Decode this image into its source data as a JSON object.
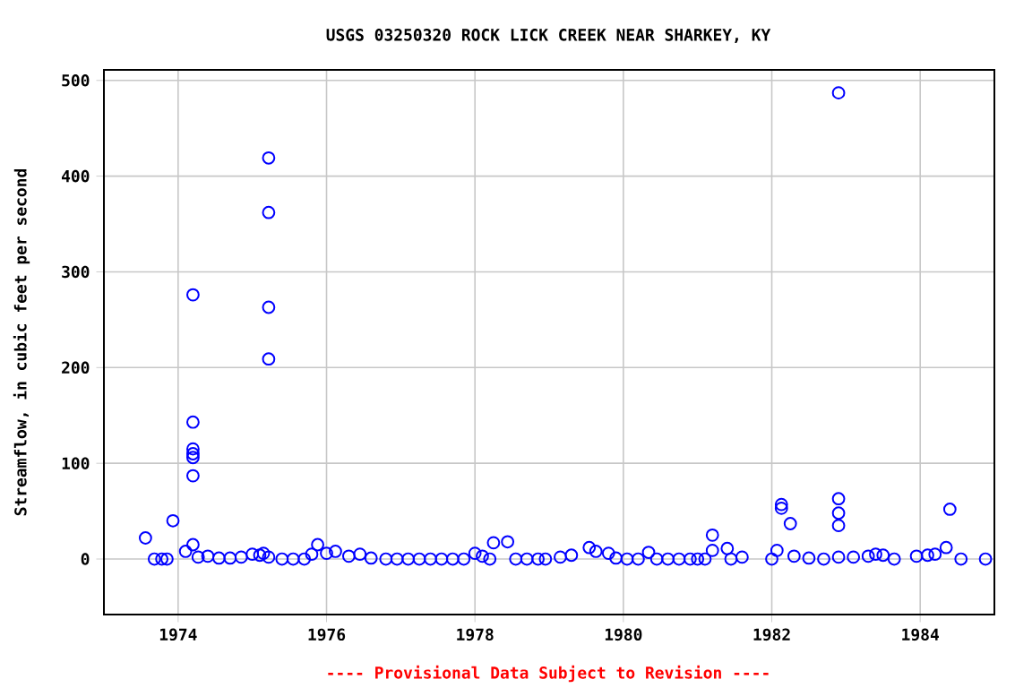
{
  "chart_data": {
    "type": "scatter",
    "title": "USGS 03250320 ROCK LICK CREEK NEAR SHARKEY, KY",
    "ylabel": "Streamflow, in cubic feet per second",
    "annotations": [
      "---- Provisional Data Subject to Revision ----"
    ],
    "x": [
      1973.56,
      1973.68,
      1973.78,
      1973.85,
      1973.93,
      1974.1,
      1974.2,
      1974.2,
      1974.2,
      1974.2,
      1974.2,
      1974.2,
      1974.2,
      1974.27,
      1974.4,
      1974.55,
      1974.7,
      1974.85,
      1975.0,
      1975.1,
      1975.15,
      1975.22,
      1975.22,
      1975.22,
      1975.22,
      1975.22,
      1975.4,
      1975.55,
      1975.7,
      1975.8,
      1975.88,
      1976.0,
      1976.12,
      1976.3,
      1976.45,
      1976.6,
      1976.8,
      1976.95,
      1977.1,
      1977.25,
      1977.4,
      1977.55,
      1977.7,
      1977.85,
      1978.0,
      1978.1,
      1978.2,
      1978.25,
      1978.44,
      1978.55,
      1978.7,
      1978.85,
      1978.95,
      1979.15,
      1979.3,
      1979.54,
      1979.63,
      1979.8,
      1979.9,
      1980.05,
      1980.2,
      1980.34,
      1980.45,
      1980.6,
      1980.75,
      1980.9,
      1981.0,
      1981.1,
      1981.2,
      1981.2,
      1981.4,
      1981.45,
      1981.6,
      1982.0,
      1982.07,
      1982.13,
      1982.13,
      1982.25,
      1982.3,
      1982.5,
      1982.7,
      1982.9,
      1982.9,
      1982.9,
      1982.9,
      1982.9,
      1983.1,
      1983.3,
      1983.4,
      1983.5,
      1983.65,
      1983.95,
      1984.1,
      1984.2,
      1984.35,
      1984.4,
      1984.55,
      1984.88
    ],
    "values": [
      22,
      0,
      0,
      0,
      40,
      8,
      15,
      276,
      143,
      110,
      115,
      106,
      87,
      2,
      3,
      1,
      1,
      2,
      5,
      4,
      6,
      419,
      362,
      263,
      209,
      2,
      0,
      0,
      0,
      5,
      15,
      6,
      8,
      3,
      5,
      1,
      0,
      0,
      0,
      0,
      0,
      0,
      0,
      0,
      6,
      3,
      0,
      17,
      18,
      0,
      0,
      0,
      0,
      2,
      4,
      12,
      8,
      6,
      1,
      0,
      0,
      7,
      0,
      0,
      0,
      0,
      0,
      0,
      25,
      9,
      11,
      0,
      2,
      0,
      9,
      57,
      53,
      37,
      3,
      1,
      0,
      2,
      487,
      63,
      48,
      35,
      2,
      3,
      5,
      4,
      0,
      3,
      4,
      5,
      12,
      52,
      0,
      0
    ],
    "color": "#0000ff",
    "marker": "circle",
    "grid": true,
    "xlim": [
      1973.0,
      1985.0
    ],
    "ylim": [
      -58,
      511
    ],
    "xticks": [
      1974,
      1976,
      1978,
      1980,
      1982,
      1984
    ],
    "yticks": [
      0,
      100,
      200,
      300,
      400,
      500
    ]
  }
}
